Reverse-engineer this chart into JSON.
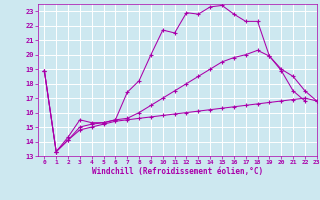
{
  "background_color": "#cde8f0",
  "grid_color": "#ffffff",
  "line_color": "#aa00aa",
  "marker": "+",
  "xlabel": "Windchill (Refroidissement éolien,°C)",
  "xlim": [
    -0.5,
    23
  ],
  "ylim": [
    13,
    23.5
  ],
  "yticks": [
    13,
    14,
    15,
    16,
    17,
    18,
    19,
    20,
    21,
    22,
    23
  ],
  "xticks": [
    0,
    1,
    2,
    3,
    4,
    5,
    6,
    7,
    8,
    9,
    10,
    11,
    12,
    13,
    14,
    15,
    16,
    17,
    18,
    19,
    20,
    21,
    22,
    23
  ],
  "series": [
    {
      "x": [
        0,
        1,
        2,
        3,
        4,
        5,
        6,
        7,
        8,
        9,
        10,
        11,
        12,
        13,
        14,
        15,
        16,
        17,
        18,
        19,
        20,
        21,
        22
      ],
      "y": [
        18.9,
        13.3,
        14.3,
        15.5,
        15.3,
        15.3,
        15.5,
        17.4,
        18.2,
        20.0,
        21.7,
        21.5,
        22.9,
        22.8,
        23.3,
        23.4,
        22.8,
        22.3,
        22.3,
        19.9,
        18.9,
        17.5,
        16.8
      ]
    },
    {
      "x": [
        0,
        1,
        2,
        3,
        4,
        5,
        6,
        7,
        8,
        9,
        10,
        11,
        12,
        13,
        14,
        15,
        16,
        17,
        18,
        19,
        20,
        21,
        22,
        23
      ],
      "y": [
        18.9,
        13.3,
        14.1,
        15.0,
        15.2,
        15.3,
        15.5,
        15.6,
        16.0,
        16.5,
        17.0,
        17.5,
        18.0,
        18.5,
        19.0,
        19.5,
        19.8,
        20.0,
        20.3,
        19.9,
        19.0,
        18.5,
        17.5,
        16.8
      ]
    },
    {
      "x": [
        0,
        1,
        2,
        3,
        4,
        5,
        6,
        7,
        8,
        9,
        10,
        11,
        12,
        13,
        14,
        15,
        16,
        17,
        18,
        19,
        20,
        21,
        22,
        23
      ],
      "y": [
        18.9,
        13.3,
        14.1,
        14.8,
        15.0,
        15.2,
        15.4,
        15.5,
        15.6,
        15.7,
        15.8,
        15.9,
        16.0,
        16.1,
        16.2,
        16.3,
        16.4,
        16.5,
        16.6,
        16.7,
        16.8,
        16.9,
        17.0,
        16.8
      ]
    }
  ]
}
